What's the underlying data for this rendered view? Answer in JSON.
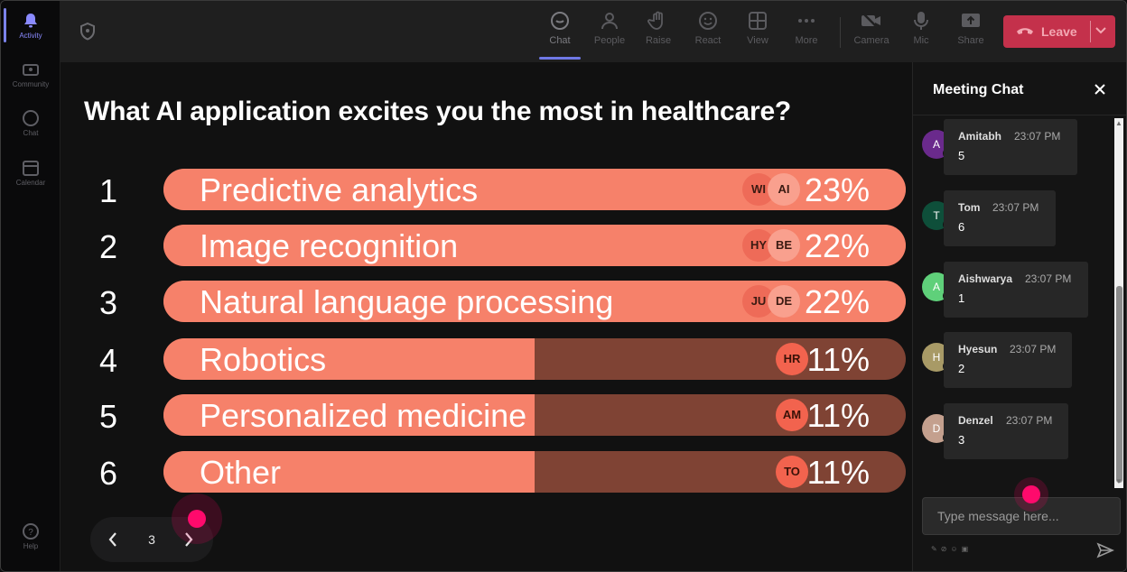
{
  "rail": {
    "items": [
      {
        "label": "Activity",
        "icon": "bell-icon"
      },
      {
        "label": "Community",
        "icon": "community-icon"
      },
      {
        "label": "Chat",
        "icon": "chat-icon"
      },
      {
        "label": "Calendar",
        "icon": "calendar-icon"
      },
      {
        "label": "Help",
        "icon": "help-icon"
      }
    ]
  },
  "toolbar": {
    "buttons": [
      {
        "label": "Chat",
        "icon": "chat-icon"
      },
      {
        "label": "People",
        "icon": "people-icon"
      },
      {
        "label": "Raise",
        "icon": "hand-icon"
      },
      {
        "label": "React",
        "icon": "smiley-icon"
      },
      {
        "label": "View",
        "icon": "grid-icon"
      },
      {
        "label": "More",
        "icon": "more-icon"
      },
      {
        "label": "Camera",
        "icon": "camera-off-icon"
      },
      {
        "label": "Mic",
        "icon": "mic-icon"
      },
      {
        "label": "Share",
        "icon": "share-icon"
      }
    ],
    "leave_label": "Leave",
    "leave_color": "#c4314b"
  },
  "poll": {
    "question": "What AI application excites you the most in healthcare?",
    "accent": "#f6816a",
    "track": "#7f4334",
    "options": [
      {
        "num": "1",
        "label": "Predictive analytics",
        "pct": "23%",
        "fraction": 1.0,
        "chips": [
          "WI",
          "AI"
        ]
      },
      {
        "num": "2",
        "label": "Image recognition",
        "pct": "22%",
        "fraction": 1.0,
        "chips": [
          "HY",
          "BE"
        ]
      },
      {
        "num": "3",
        "label": "Natural language processing",
        "pct": "22%",
        "fraction": 1.0,
        "chips": [
          "JU",
          "DE"
        ]
      },
      {
        "num": "4",
        "label": "Robotics",
        "pct": "11%",
        "fraction": 0.5,
        "chips": [
          "HR"
        ]
      },
      {
        "num": "5",
        "label": "Personalized medicine",
        "pct": "11%",
        "fraction": 0.5,
        "chips": [
          "AM"
        ]
      },
      {
        "num": "6",
        "label": "Other",
        "pct": "11%",
        "fraction": 0.5,
        "chips": [
          "TO"
        ]
      }
    ],
    "page": "3"
  },
  "chat": {
    "title": "Meeting Chat",
    "messages": [
      {
        "initial": "A",
        "name": "Amitabh",
        "time": "23:07 PM",
        "text": "5",
        "color": "#6a2a8c"
      },
      {
        "initial": "T",
        "name": "Tom",
        "time": "23:07 PM",
        "text": "6",
        "color": "#0e4f3a"
      },
      {
        "initial": "A",
        "name": "Aishwarya",
        "time": "23:07 PM",
        "text": "1",
        "color": "#5fd07a"
      },
      {
        "initial": "H",
        "name": "Hyesun",
        "time": "23:07 PM",
        "text": "2",
        "color": "#a89a66"
      },
      {
        "initial": "D",
        "name": "Denzel",
        "time": "23:07 PM",
        "text": "3",
        "color": "#c4a08e"
      }
    ],
    "compose_placeholder": "Type message here..."
  }
}
